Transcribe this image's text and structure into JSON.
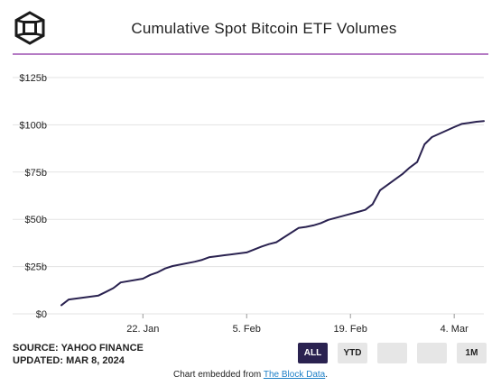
{
  "header": {
    "title": "Cumulative Spot Bitcoin ETF Volumes"
  },
  "footer": {
    "source": "SOURCE: YAHOO FINANCE",
    "updated": "UPDATED: MAR 8, 2024",
    "embed_prefix": "Chart embedded from ",
    "embed_link": "The Block Data",
    "embed_suffix": "."
  },
  "range_buttons": [
    {
      "label": "ALL",
      "active": true
    },
    {
      "label": "YTD",
      "active": false
    },
    {
      "label": "",
      "active": false
    },
    {
      "label": "",
      "active": false
    },
    {
      "label": "1M",
      "active": false
    }
  ],
  "colors": {
    "line": "#2a2250",
    "rule": "#b57bc4",
    "grid": "#e3e3e3",
    "button_active": "#2a2250",
    "button_inactive": "#e6e6e6",
    "link": "#1c7fc7"
  },
  "chart_data": {
    "type": "line",
    "title": "Cumulative Spot Bitcoin ETF Volumes",
    "xlabel": "",
    "ylabel": "",
    "ylim": [
      0,
      125
    ],
    "y_ticks": [
      0,
      25,
      50,
      75,
      100,
      125
    ],
    "y_tick_labels": [
      "$0",
      "$25b",
      "$50b",
      "$75b",
      "$100b",
      "$125b"
    ],
    "x_tick_labels": [
      "22. Jan",
      "5. Feb",
      "19. Feb",
      "4. Mar"
    ],
    "x_tick_dates": [
      "2024-01-22",
      "2024-02-05",
      "2024-02-19",
      "2024-03-04"
    ],
    "xlim": [
      "2024-01-11",
      "2024-03-08"
    ],
    "grid": "horizontal",
    "legend": "none",
    "series": [
      {
        "x": [
          "2024-01-11",
          "2024-01-12",
          "2024-01-16",
          "2024-01-17",
          "2024-01-18",
          "2024-01-19",
          "2024-01-22",
          "2024-01-23",
          "2024-01-24",
          "2024-01-25",
          "2024-01-26",
          "2024-01-29",
          "2024-01-30",
          "2024-01-31",
          "2024-02-01",
          "2024-02-02",
          "2024-02-05",
          "2024-02-06",
          "2024-02-07",
          "2024-02-08",
          "2024-02-09",
          "2024-02-12",
          "2024-02-13",
          "2024-02-14",
          "2024-02-15",
          "2024-02-16",
          "2024-02-20",
          "2024-02-21",
          "2024-02-22",
          "2024-02-23",
          "2024-02-26",
          "2024-02-27",
          "2024-02-28",
          "2024-02-29",
          "2024-03-01",
          "2024-03-04",
          "2024-03-05",
          "2024-03-06",
          "2024-03-07",
          "2024-03-08"
        ],
        "y": [
          4.6,
          7.6,
          9.7,
          11.6,
          13.6,
          16.6,
          18.6,
          20.6,
          22.0,
          24.0,
          25.3,
          27.6,
          28.6,
          30.0,
          30.5,
          31.0,
          32.5,
          34.0,
          35.6,
          36.9,
          37.9,
          45.4,
          46.0,
          46.8,
          48.0,
          49.7,
          53.9,
          55.0,
          58.0,
          65.4,
          73.9,
          77.4,
          80.3,
          89.7,
          93.5,
          98.8,
          100.5,
          101.0,
          101.6,
          102.0
        ]
      }
    ]
  }
}
